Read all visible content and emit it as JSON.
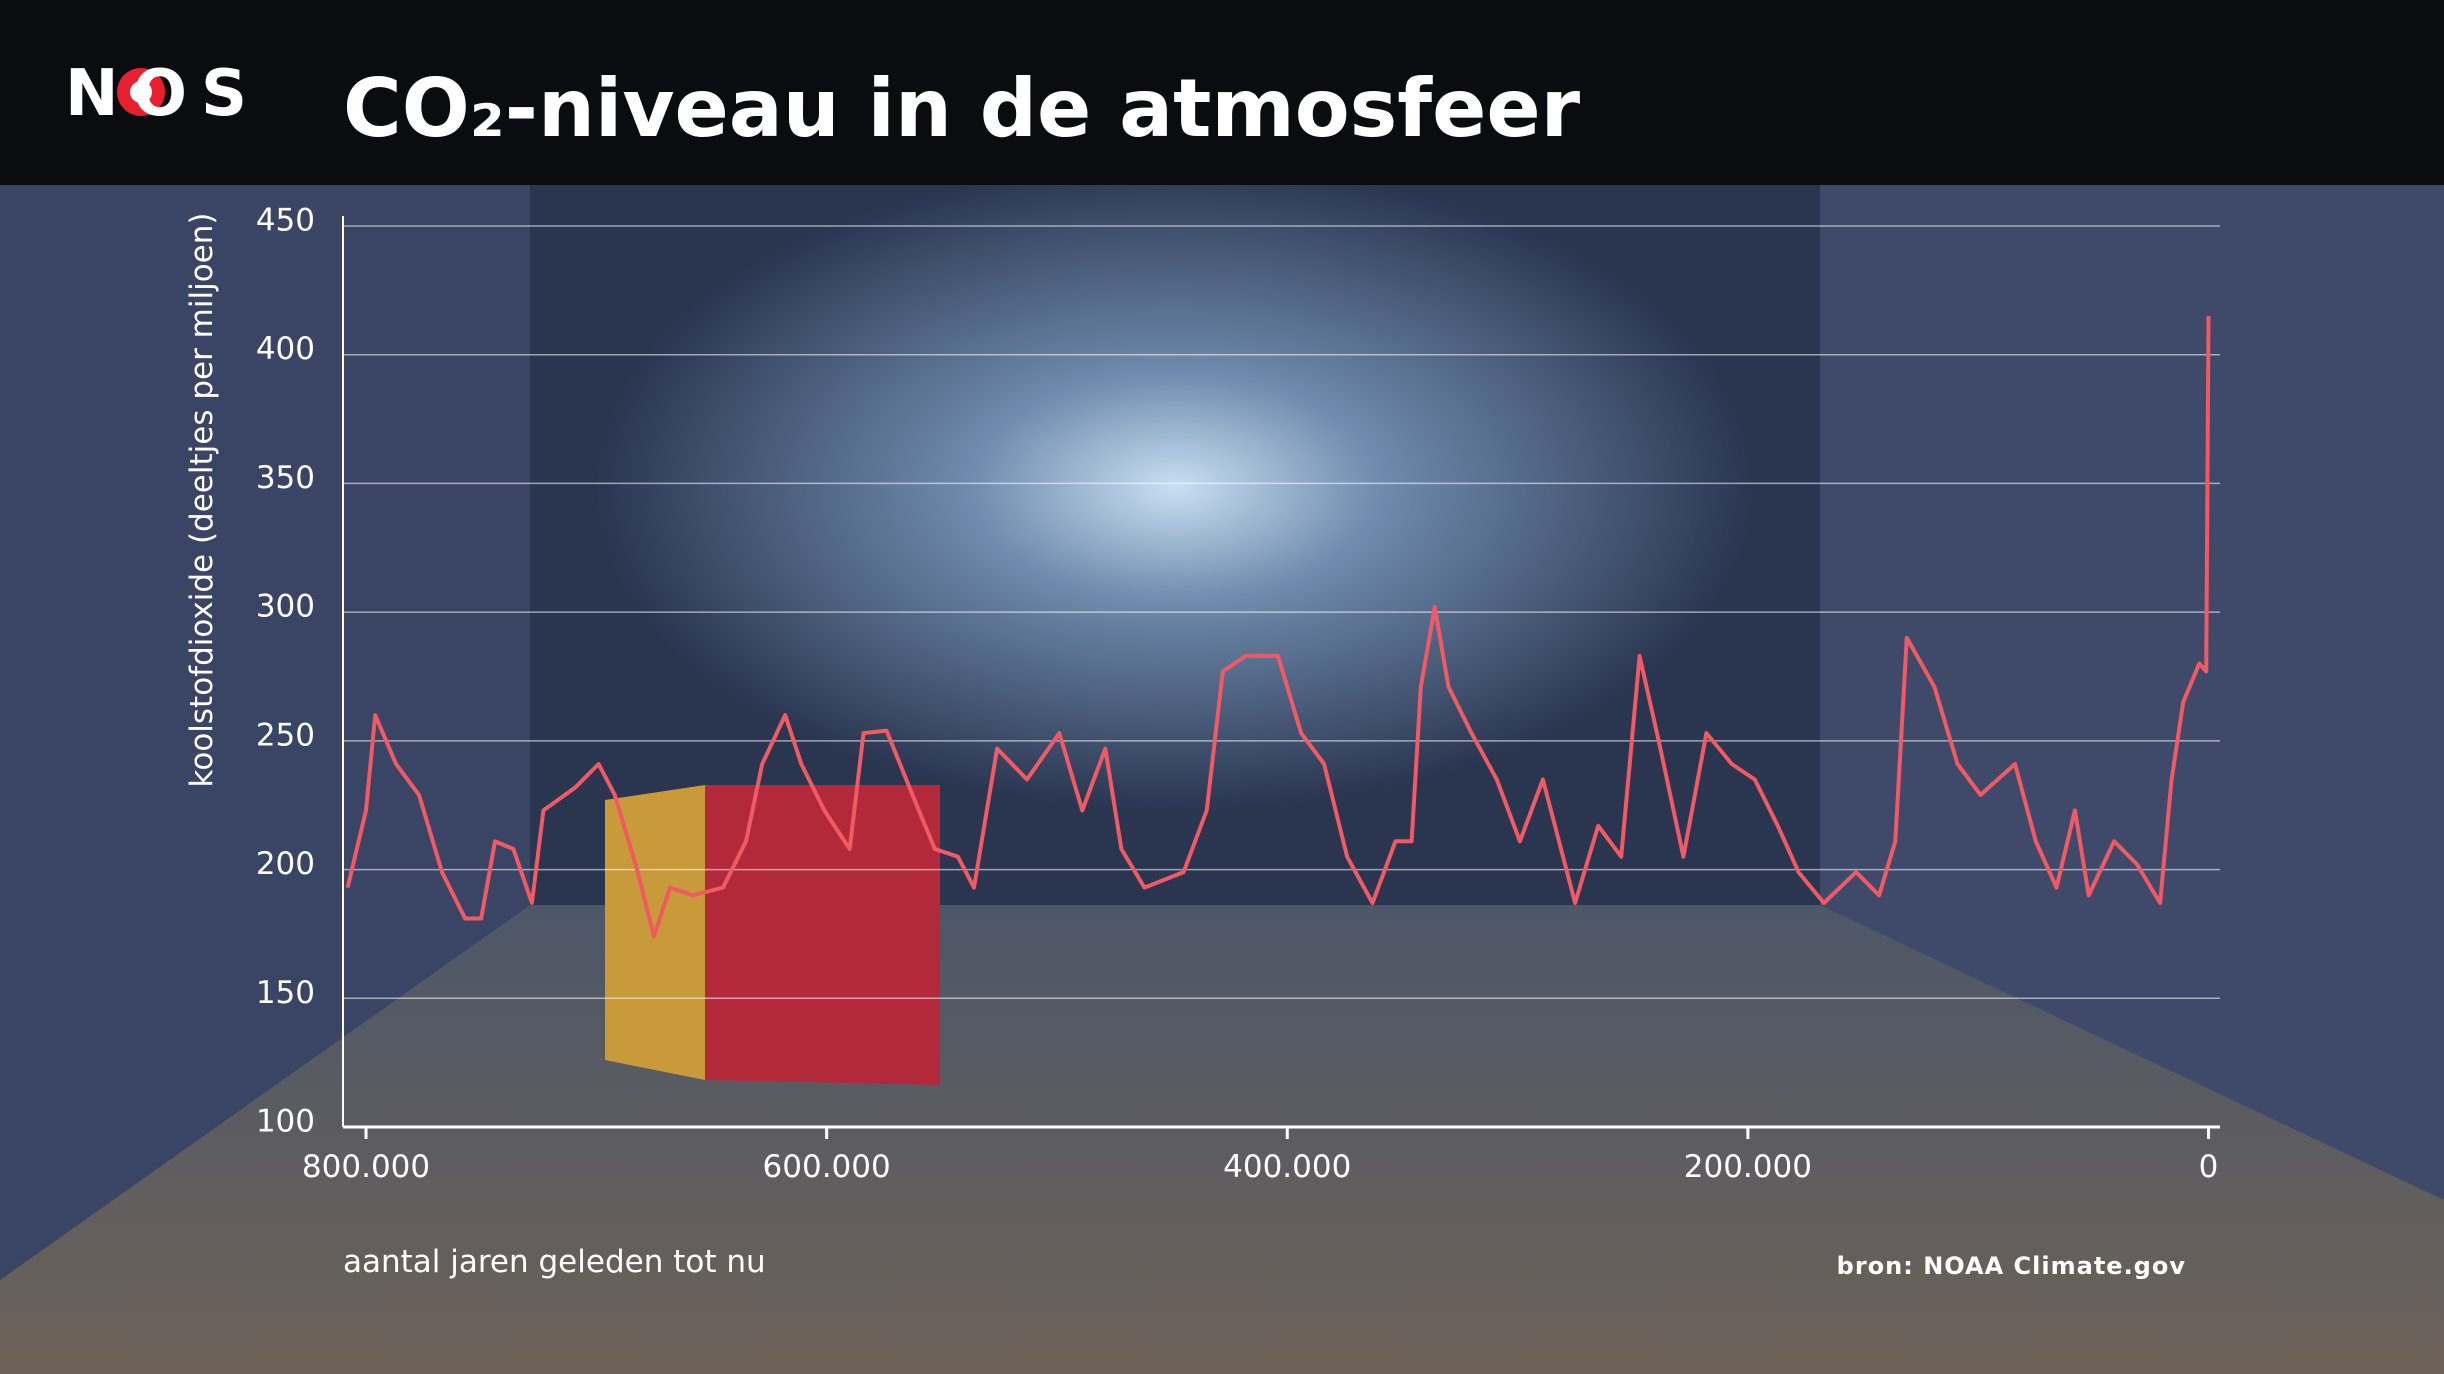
{
  "logo": "NOS",
  "chart_data": {
    "type": "line",
    "title": "CO₂-niveau in de atmosfeer",
    "ylabel": "koolstofdioxide (deeltjes per miljoen)",
    "xlabel": "aantal jaren geleden tot nu",
    "source": "bron: NOAA Climate.gov",
    "color": "#ef5a64",
    "x": [
      808000,
      800000,
      796000,
      787000,
      777000,
      767000,
      757000,
      750000,
      744000,
      736000,
      728000,
      723000,
      709000,
      699000,
      692000,
      682000,
      675000,
      668000,
      658000,
      645000,
      635000,
      628000,
      618000,
      611000,
      601000,
      590000,
      584000,
      574000,
      560000,
      553000,
      543000,
      536000,
      526000,
      513000,
      499000,
      489000,
      479000,
      472000,
      462000,
      445000,
      435000,
      428000,
      418000,
      404000,
      394000,
      384000,
      374000,
      363000,
      353000,
      346000,
      342000,
      336000,
      330000,
      320000,
      309000,
      299000,
      289000,
      275000,
      265000,
      255000,
      247000,
      238000,
      228000,
      218000,
      207000,
      197000,
      187000,
      178000,
      167000,
      153000,
      143000,
      136000,
      131000,
      119000,
      109000,
      99000,
      84000,
      75000,
      66000,
      58000,
      52000,
      41000,
      31000,
      21000,
      16000,
      11000,
      4000,
      1000,
      0
    ],
    "values": [
      193,
      223,
      260,
      241,
      229,
      199,
      181,
      181,
      211,
      208,
      187,
      223,
      232,
      241,
      229,
      199,
      174,
      193,
      190,
      193,
      211,
      241,
      260,
      241,
      223,
      208,
      253,
      254,
      223,
      208,
      205,
      193,
      247,
      235,
      253,
      223,
      247,
      208,
      193,
      199,
      223,
      277,
      283,
      283,
      253,
      241,
      205,
      187,
      211,
      211,
      271,
      302,
      271,
      253,
      235,
      211,
      235,
      187,
      217,
      205,
      283,
      247,
      205,
      253,
      241,
      235,
      217,
      199,
      187,
      199,
      190,
      211,
      290,
      271,
      241,
      229,
      241,
      211,
      193,
      223,
      190,
      211,
      202,
      187,
      235,
      265,
      280,
      277,
      415
    ],
    "xlim": [
      810000,
      -5000
    ],
    "xticks": [
      {
        "value": 800000,
        "label": "800.000"
      },
      {
        "value": 600000,
        "label": "600.000"
      },
      {
        "value": 400000,
        "label": "400.000"
      },
      {
        "value": 200000,
        "label": "200.000"
      },
      0
    ],
    "ylim": [
      100,
      450
    ],
    "yticks": [
      100,
      150,
      200,
      250,
      300,
      350,
      400,
      450
    ],
    "grid": true
  }
}
